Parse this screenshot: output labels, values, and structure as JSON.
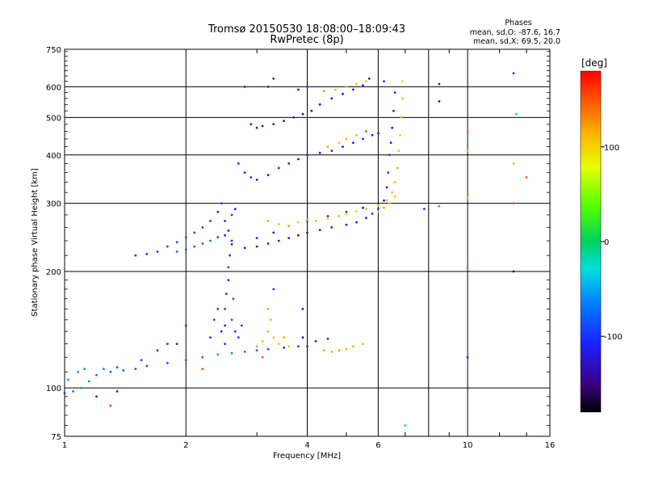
{
  "chart_data": {
    "type": "scatter",
    "title": "Tromsø 20150530 18:08:00–18:09:43",
    "subtitle": "RwPretec (8p)",
    "xlabel": "Frequency [MHz]",
    "ylabel": "Stationary phase Virtual Height [km]",
    "x_scale": "log",
    "y_scale": "log",
    "xlim": [
      1,
      16
    ],
    "ylim": [
      75,
      750
    ],
    "x_ticks": [
      1,
      2,
      4,
      6,
      8,
      10,
      16
    ],
    "x_tick_labels": [
      "1",
      "2",
      "4",
      "6",
      "",
      "10",
      "16"
    ],
    "y_ticks": [
      75,
      100,
      200,
      300,
      400,
      500,
      600,
      750
    ],
    "y_tick_labels": [
      "75",
      "100",
      "200",
      "300",
      "400",
      "500",
      "600",
      "750"
    ],
    "grid": true,
    "phases_box": {
      "heading": "Phases",
      "line_o": "mean, sd,O: -87.6, 16.7",
      "line_x": "mean, sd,X:  69.5, 20.0"
    },
    "colorbar": {
      "label": "[deg]",
      "range": [
        -180,
        180
      ],
      "ticks": [
        100,
        0,
        -100
      ],
      "tick_labels": [
        "100",
        "0",
        "-100"
      ]
    },
    "series": [
      {
        "points": [
          [
            1.0,
            97,
            -100
          ],
          [
            1.05,
            98,
            -70
          ],
          [
            1.1,
            100,
            -60
          ],
          [
            1.15,
            104,
            -60
          ],
          [
            1.2,
            108,
            -70
          ],
          [
            1.3,
            110,
            -80
          ],
          [
            1.4,
            111,
            -90
          ],
          [
            1.5,
            112,
            -85
          ],
          [
            1.6,
            114,
            -90
          ],
          [
            1.8,
            116,
            -85
          ],
          [
            2.0,
            118,
            -80
          ],
          [
            2.2,
            120,
            -70
          ],
          [
            2.4,
            122,
            -60
          ],
          [
            2.6,
            123,
            -65
          ],
          [
            2.8,
            124,
            -70
          ],
          [
            3.0,
            125,
            -75
          ],
          [
            3.2,
            126,
            -90
          ],
          [
            3.5,
            127,
            -100
          ],
          [
            3.8,
            128,
            -95
          ],
          [
            4.0,
            128,
            -100
          ],
          [
            1.02,
            105,
            -60
          ],
          [
            1.08,
            110,
            -50
          ],
          [
            1.12,
            112,
            -60
          ],
          [
            1.25,
            112,
            -70
          ],
          [
            1.35,
            113,
            -80
          ],
          [
            1.55,
            118,
            -85
          ],
          [
            1.7,
            125,
            -95
          ],
          [
            1.8,
            130,
            -100
          ],
          [
            1.9,
            130,
            -110
          ]
        ]
      },
      {
        "points": [
          [
            1.5,
            220,
            -100
          ],
          [
            1.6,
            222,
            -105
          ],
          [
            1.7,
            225,
            -100
          ],
          [
            1.8,
            232,
            -90
          ],
          [
            1.9,
            238,
            -85
          ],
          [
            2.0,
            245,
            -80
          ],
          [
            2.1,
            252,
            -90
          ],
          [
            2.2,
            260,
            -95
          ],
          [
            2.3,
            270,
            -100
          ],
          [
            2.4,
            285,
            -100
          ],
          [
            2.45,
            300,
            -90
          ],
          [
            2.5,
            270,
            -110
          ],
          [
            2.55,
            255,
            -120
          ],
          [
            2.6,
            280,
            -100
          ],
          [
            2.65,
            290,
            -110
          ],
          [
            1.9,
            225,
            -80
          ],
          [
            2.0,
            228,
            -80
          ],
          [
            2.1,
            232,
            -75
          ],
          [
            2.2,
            236,
            -80
          ],
          [
            2.3,
            240,
            -70
          ],
          [
            2.4,
            245,
            -90
          ],
          [
            2.5,
            248,
            -100
          ],
          [
            2.6,
            235,
            -115
          ]
        ]
      },
      {
        "points": [
          [
            2.5,
            130,
            -100
          ],
          [
            2.5,
            145,
            -105
          ],
          [
            2.5,
            160,
            -90
          ],
          [
            2.52,
            175,
            -100
          ],
          [
            2.55,
            190,
            -110
          ],
          [
            2.55,
            205,
            -95
          ],
          [
            2.57,
            220,
            -105
          ],
          [
            2.6,
            240,
            -100
          ],
          [
            2.6,
            150,
            -90
          ],
          [
            2.62,
            170,
            -85
          ],
          [
            2.65,
            140,
            -95
          ],
          [
            2.7,
            135,
            -100
          ],
          [
            2.75,
            145,
            -100
          ],
          [
            2.3,
            135,
            -90
          ],
          [
            2.35,
            150,
            -95
          ],
          [
            2.4,
            160,
            -100
          ],
          [
            2.45,
            140,
            -110
          ]
        ]
      },
      {
        "points": [
          [
            2.8,
            230,
            -110
          ],
          [
            3.0,
            232,
            -115
          ],
          [
            3.2,
            236,
            -120
          ],
          [
            3.4,
            240,
            -120
          ],
          [
            3.6,
            244,
            -115
          ],
          [
            3.8,
            248,
            -120
          ],
          [
            4.0,
            252,
            -120
          ],
          [
            4.3,
            256,
            -115
          ],
          [
            4.6,
            260,
            -115
          ],
          [
            5.0,
            264,
            -110
          ],
          [
            5.3,
            268,
            -110
          ],
          [
            5.6,
            275,
            -110
          ],
          [
            5.8,
            282,
            -105
          ],
          [
            6.0,
            290,
            -100
          ],
          [
            6.2,
            305,
            -110
          ],
          [
            6.3,
            330,
            -110
          ],
          [
            6.35,
            360,
            -100
          ],
          [
            6.4,
            400,
            -100
          ],
          [
            6.45,
            430,
            -110
          ],
          [
            6.5,
            470,
            -110
          ],
          [
            6.55,
            520,
            -110
          ],
          [
            6.6,
            580,
            -110
          ],
          [
            3.0,
            244,
            -100
          ],
          [
            3.3,
            252,
            -110
          ],
          [
            3.6,
            262,
            -110
          ],
          [
            4.0,
            270,
            -100
          ],
          [
            4.5,
            278,
            -105
          ],
          [
            5.0,
            285,
            -105
          ],
          [
            5.5,
            292,
            -110
          ]
        ]
      },
      {
        "points": [
          [
            3.2,
            270,
            120
          ],
          [
            3.4,
            265,
            110
          ],
          [
            3.6,
            262,
            120
          ],
          [
            3.8,
            268,
            110
          ],
          [
            4.0,
            272,
            110
          ],
          [
            4.2,
            270,
            120
          ],
          [
            4.5,
            274,
            110
          ],
          [
            4.8,
            278,
            115
          ],
          [
            5.0,
            282,
            110
          ],
          [
            5.3,
            286,
            100
          ],
          [
            5.6,
            290,
            110
          ],
          [
            6.0,
            296,
            105
          ],
          [
            6.3,
            305,
            110
          ],
          [
            6.5,
            320,
            110
          ],
          [
            6.6,
            340,
            110
          ],
          [
            6.7,
            370,
            110
          ],
          [
            6.75,
            410,
            110
          ],
          [
            6.8,
            450,
            105
          ],
          [
            6.85,
            500,
            110
          ],
          [
            6.9,
            560,
            110
          ],
          [
            6.9,
            620,
            105
          ],
          [
            6.0,
            285,
            110
          ],
          [
            6.2,
            292,
            115
          ],
          [
            6.4,
            300,
            110
          ],
          [
            6.6,
            312,
            110
          ]
        ]
      },
      {
        "points": [
          [
            2.7,
            380,
            -100
          ],
          [
            2.8,
            360,
            -100
          ],
          [
            2.9,
            350,
            -110
          ],
          [
            3.0,
            345,
            -120
          ],
          [
            3.2,
            355,
            -115
          ],
          [
            3.4,
            370,
            -115
          ],
          [
            3.6,
            380,
            -115
          ],
          [
            3.8,
            390,
            -115
          ],
          [
            4.0,
            400,
            -120
          ],
          [
            4.3,
            405,
            -115
          ],
          [
            4.6,
            410,
            -110
          ],
          [
            4.9,
            420,
            -110
          ],
          [
            5.2,
            430,
            -105
          ],
          [
            5.5,
            440,
            -110
          ],
          [
            5.8,
            450,
            -110
          ],
          [
            6.0,
            455,
            -120
          ],
          [
            4.5,
            420,
            120
          ],
          [
            4.8,
            430,
            110
          ],
          [
            5.0,
            440,
            115
          ],
          [
            5.3,
            450,
            110
          ],
          [
            5.6,
            460,
            150
          ]
        ]
      },
      {
        "points": [
          [
            2.9,
            480,
            -120
          ],
          [
            3.0,
            470,
            -120
          ],
          [
            3.1,
            475,
            -130
          ],
          [
            3.3,
            480,
            -125
          ],
          [
            3.5,
            490,
            -125
          ],
          [
            3.7,
            500,
            -120
          ],
          [
            3.9,
            510,
            -120
          ],
          [
            4.1,
            520,
            -125
          ],
          [
            4.3,
            540,
            -120
          ],
          [
            4.6,
            560,
            -115
          ],
          [
            4.9,
            575,
            -115
          ],
          [
            5.2,
            590,
            -110
          ],
          [
            5.5,
            605,
            -110
          ],
          [
            5.7,
            630,
            -110
          ],
          [
            4.4,
            585,
            120
          ],
          [
            4.7,
            590,
            110
          ],
          [
            5.0,
            600,
            115
          ],
          [
            5.3,
            610,
            110
          ],
          [
            5.6,
            620,
            110
          ],
          [
            3.2,
            600,
            -120
          ],
          [
            3.8,
            590,
            -120
          ],
          [
            4.0,
            600,
            -110
          ]
        ]
      },
      {
        "points": [
          [
            3.0,
            128,
            120
          ],
          [
            3.1,
            132,
            115
          ],
          [
            3.2,
            140,
            120
          ],
          [
            3.25,
            150,
            110
          ],
          [
            3.2,
            160,
            120
          ],
          [
            3.3,
            135,
            110
          ],
          [
            3.4,
            130,
            110
          ],
          [
            3.5,
            135,
            120
          ],
          [
            3.6,
            128,
            110
          ],
          [
            3.1,
            120,
            150
          ],
          [
            4.4,
            125,
            120
          ],
          [
            4.6,
            124,
            115
          ],
          [
            4.8,
            125,
            120
          ],
          [
            5.0,
            126,
            110
          ],
          [
            5.2,
            128,
            120
          ],
          [
            5.5,
            130,
            110
          ],
          [
            3.9,
            135,
            -120
          ],
          [
            4.2,
            132,
            -110
          ],
          [
            4.5,
            134,
            -100
          ]
        ]
      },
      {
        "points": [
          [
            1.3,
            90,
            160
          ],
          [
            1.2,
            95,
            -120
          ],
          [
            1.35,
            98,
            -110
          ],
          [
            2.0,
            145,
            -100
          ],
          [
            2.2,
            112,
            150
          ],
          [
            3.3,
            180,
            -100
          ],
          [
            3.9,
            160,
            -110
          ],
          [
            8.5,
            610,
            -130
          ],
          [
            8.5,
            550,
            -140
          ],
          [
            8.5,
            295,
            150
          ],
          [
            10.0,
            460,
            150
          ],
          [
            10.0,
            410,
            40
          ],
          [
            10.0,
            310,
            40
          ],
          [
            10.0,
            205,
            150
          ],
          [
            10.0,
            120,
            -110
          ],
          [
            13.0,
            650,
            -100
          ],
          [
            13.2,
            510,
            -20
          ],
          [
            13.0,
            380,
            110
          ],
          [
            14.0,
            350,
            150
          ],
          [
            13.0,
            300,
            150
          ],
          [
            13.0,
            200,
            -160
          ],
          [
            7.0,
            80,
            -40
          ],
          [
            7.8,
            290,
            -100
          ],
          [
            6.2,
            620,
            -100
          ],
          [
            3.3,
            630,
            -120
          ],
          [
            2.8,
            600,
            -110
          ]
        ]
      }
    ]
  }
}
